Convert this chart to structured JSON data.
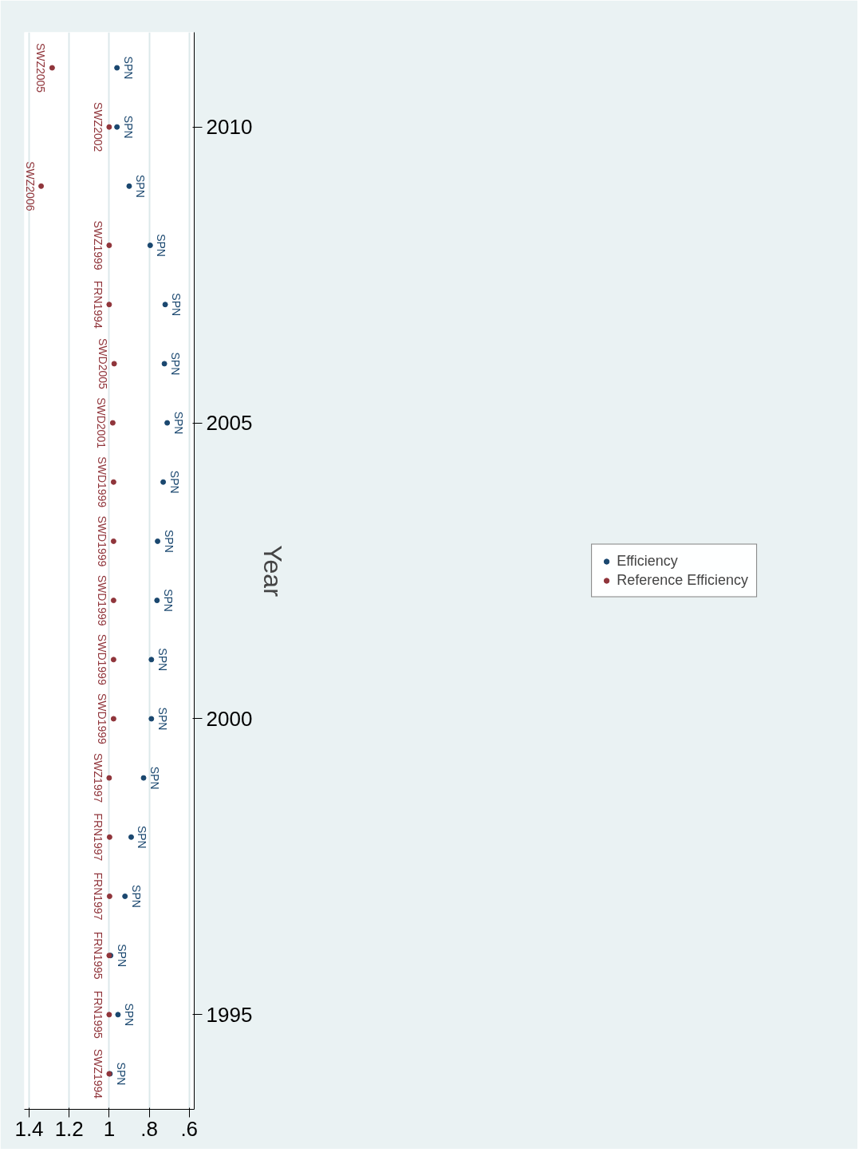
{
  "chart_data": {
    "type": "scatter",
    "ylabel": "Year",
    "series": [
      {
        "name": "Efficiency",
        "color": "#1a476f",
        "x": [
          0.996,
          0.956,
          0.993,
          0.921,
          0.89,
          0.828,
          0.789,
          0.789,
          0.761,
          0.758,
          0.73,
          0.71,
          0.724,
          0.72,
          0.795,
          0.9,
          0.961,
          0.961
        ],
        "values": [
          1994,
          1995,
          1996,
          1997,
          1998,
          1999,
          2000,
          2001,
          2002,
          2003,
          2004,
          2005,
          2006,
          2007,
          2008,
          2009,
          2010,
          2011
        ],
        "value_labels": [
          "SPN",
          "SPN",
          "SPN",
          "SPN",
          "SPN",
          "SPN",
          "SPN",
          "SPN",
          "SPN",
          "SPN",
          "SPN",
          "SPN",
          "SPN",
          "SPN",
          "SPN",
          "SPN",
          "SPN",
          "SPN"
        ]
      },
      {
        "name": "Reference Efficiency",
        "color": "#90353b",
        "x": [
          1.0,
          1.0,
          1.0,
          0.998,
          0.998,
          1.0,
          0.978,
          0.978,
          0.978,
          0.978,
          0.978,
          0.982,
          0.975,
          1.0,
          1.0,
          1.34,
          1.0,
          1.285
        ],
        "values": [
          1994,
          1995,
          1996,
          1997,
          1998,
          1999,
          2000,
          2001,
          2002,
          2003,
          2004,
          2005,
          2006,
          2007,
          2008,
          2009,
          2010,
          2011
        ],
        "value_labels": [
          "SWZ1994",
          "FRN1995",
          "FRN1995",
          "FRN1997",
          "FRN1997",
          "SWZ1997",
          "SWD1999",
          "SWD1999",
          "SWD1999",
          "SWD1999",
          "SWD1999",
          "SWD2001",
          "SWD2005",
          "FRN1994",
          "SWZ1999",
          "SWZ2006",
          "SWZ2002",
          "SWZ2005"
        ]
      }
    ],
    "xlim": [
      1.424,
      0.575
    ],
    "ylim": [
      1993.4,
      2011.6
    ],
    "xticks": [
      {
        "value": 0.6,
        "label": ".6"
      },
      {
        "value": 0.8,
        "label": ".8"
      },
      1,
      1.2,
      1.4
    ],
    "yticks": [
      1995,
      2000,
      2005,
      2010
    ],
    "grid": "x",
    "marker": "circle",
    "legend": "right"
  }
}
